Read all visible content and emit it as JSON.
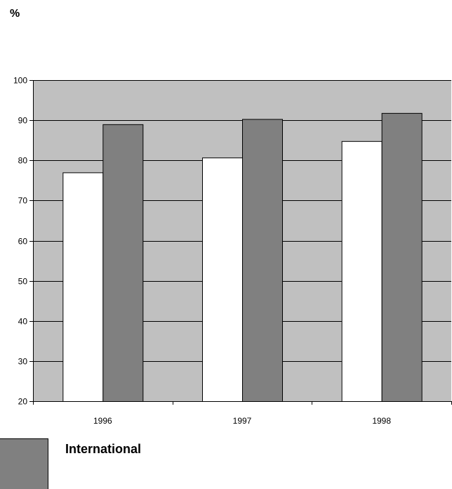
{
  "unit_label": "%",
  "chart_data": {
    "type": "bar",
    "categories": [
      "1996",
      "1997",
      "1998"
    ],
    "series": [
      {
        "values": [
          77,
          80.7,
          84.8
        ],
        "color": "#ffffff"
      },
      {
        "name": "International",
        "values": [
          89,
          90.3,
          91.8
        ],
        "color": "#808080"
      }
    ],
    "ylim": [
      20,
      100
    ],
    "yticks": [
      20,
      30,
      40,
      50,
      60,
      70,
      80,
      90,
      100
    ],
    "plot_background": "#c0c0c0",
    "grid": true,
    "legend": "bottom-left"
  },
  "legend": {
    "label": "International",
    "color": "#808080"
  }
}
